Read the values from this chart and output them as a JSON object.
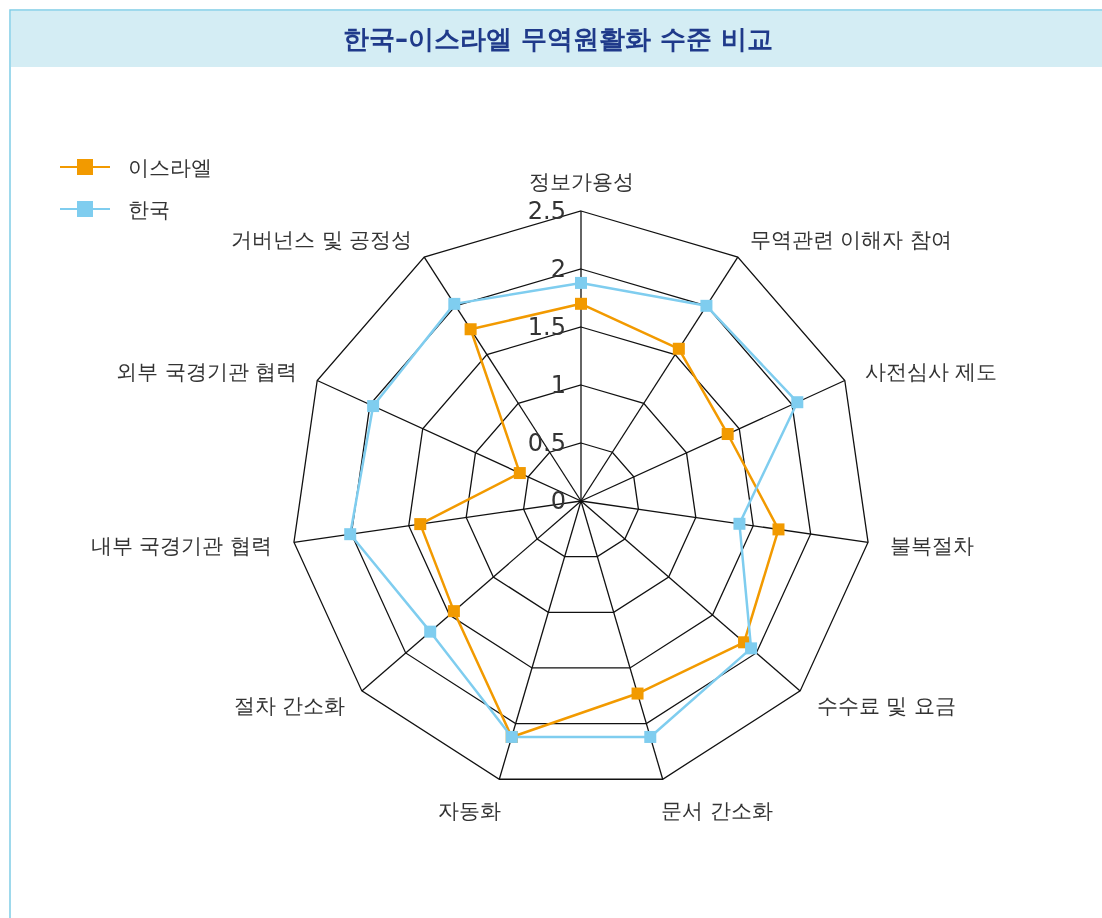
{
  "chart_data": {
    "type": "radar",
    "title": "한국–이스라엘 무역원활화 수준 비교",
    "categories": [
      "정보가용성",
      "무역관련 이해자 참여",
      "사전심사 제도",
      "불복절차",
      "수수료 및 요금",
      "문서 간소화",
      "자동화",
      "절차 간소화",
      "내부 국경기관 협력",
      "외부 국경기관 협력",
      "거버넌스 및 공정성"
    ],
    "series": [
      {
        "name": "이스라엘",
        "color": "#f29a00",
        "values": [
          1.7,
          1.56,
          1.39,
          1.72,
          1.86,
          1.73,
          2.12,
          1.45,
          1.4,
          0.58,
          1.76
        ]
      },
      {
        "name": "한국",
        "color": "#7fcdef",
        "values": [
          1.88,
          2.0,
          2.05,
          1.38,
          1.94,
          2.12,
          2.12,
          1.72,
          2.01,
          1.97,
          2.02
        ]
      }
    ],
    "ylim": [
      0,
      2.5
    ],
    "yticks": [
      0,
      0.5,
      1,
      1.5,
      2,
      2.5
    ],
    "grid": true,
    "legend": "top left",
    "marker": "square"
  }
}
